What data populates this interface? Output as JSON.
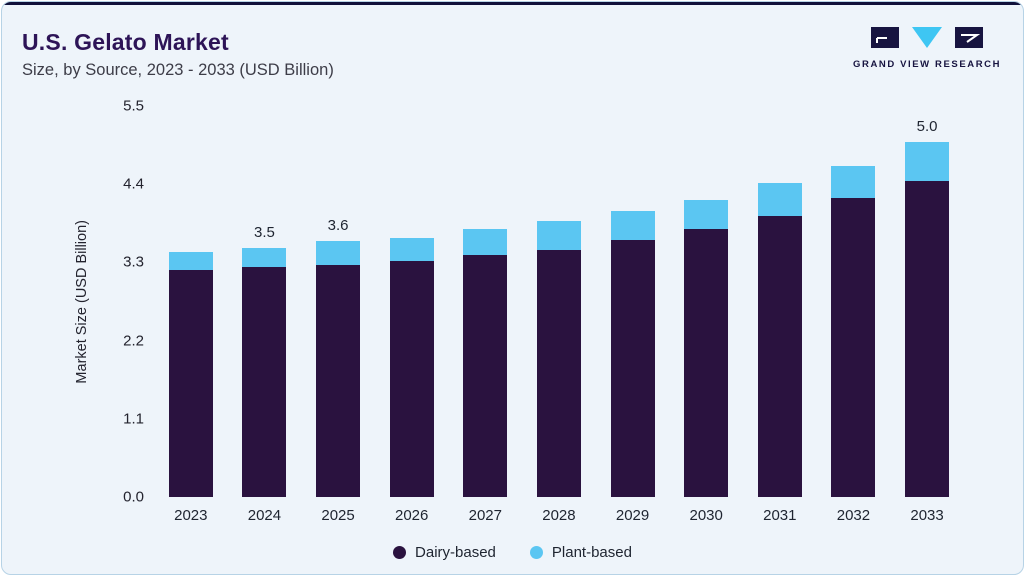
{
  "header": {
    "title": "U.S. Gelato Market",
    "subtitle": "Size, by Source, 2023 - 2033 (USD Billion)",
    "brand": "GRAND VIEW RESEARCH"
  },
  "chart_data": {
    "type": "bar",
    "stacked": true,
    "title": "U.S. Gelato Market",
    "subtitle": "Size, by Source, 2023 - 2033 (USD Billion)",
    "xlabel": "",
    "ylabel": "Market Size (USD Billion)",
    "ylim": [
      0,
      5.5
    ],
    "yticks": [
      0.0,
      1.1,
      2.2,
      3.3,
      4.4,
      5.5
    ],
    "grid": false,
    "legend_position": "bottom",
    "categories": [
      "2023",
      "2024",
      "2025",
      "2026",
      "2027",
      "2028",
      "2029",
      "2030",
      "2031",
      "2032",
      "2033"
    ],
    "series": [
      {
        "name": "Dairy-based",
        "color": "#2a123f",
        "values": [
          3.2,
          3.24,
          3.27,
          3.32,
          3.4,
          3.48,
          3.62,
          3.77,
          3.95,
          4.2,
          4.45
        ]
      },
      {
        "name": "Plant-based",
        "color": "#5bc6f2",
        "values": [
          0.25,
          0.26,
          0.33,
          0.33,
          0.37,
          0.4,
          0.4,
          0.41,
          0.47,
          0.45,
          0.55
        ]
      }
    ],
    "totals": [
      3.45,
      3.5,
      3.6,
      3.65,
      3.77,
      3.88,
      4.02,
      4.18,
      4.42,
      4.65,
      5.0
    ],
    "total_labels": [
      "",
      "3.5",
      "3.6",
      "",
      "",
      "",
      "",
      "",
      "",
      "",
      "5.0"
    ]
  },
  "colors": {
    "card_background": "#eef4fa",
    "card_border": "#b7d3e6",
    "top_rule": "#10103a",
    "title_text": "#2d1457",
    "body_text": "#1e2430",
    "brand_dark": "#171440",
    "brand_cyan": "#3ec6f3"
  }
}
